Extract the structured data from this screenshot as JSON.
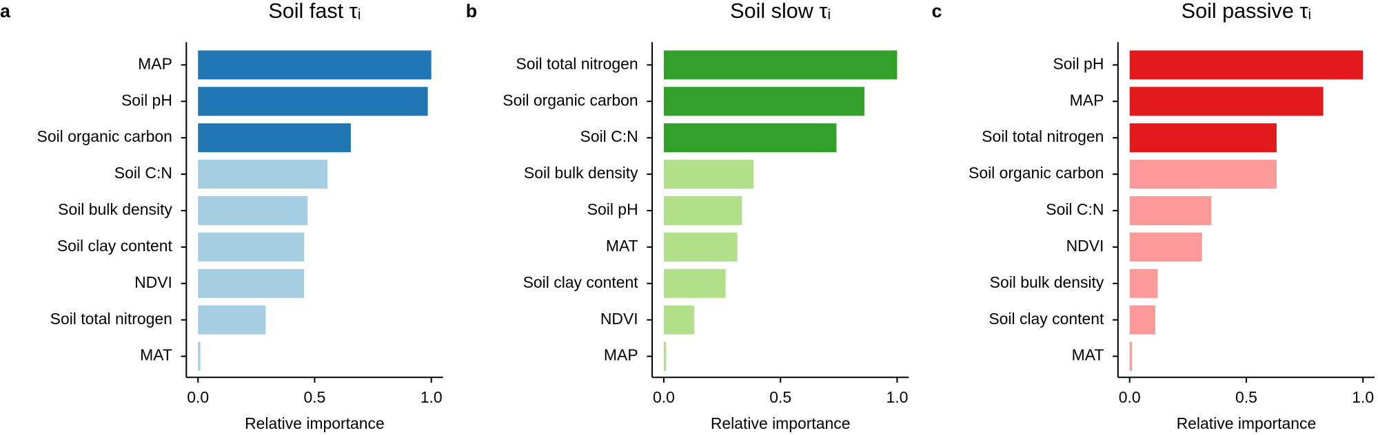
{
  "chart_data": [
    {
      "type": "bar",
      "orientation": "horizontal",
      "panel_label": "a",
      "title": "Soil fast τᵢ",
      "xlabel": "Relative importance",
      "categories": [
        "MAP",
        "Soil pH",
        "Soil organic carbon",
        "Soil C:N",
        "Soil bulk density",
        "Soil clay content",
        "NDVI",
        "Soil total nitrogen",
        "MAT"
      ],
      "values": [
        1.0,
        0.985,
        0.655,
        0.555,
        0.47,
        0.455,
        0.455,
        0.29,
        0.01
      ],
      "colors": [
        "#2077b4",
        "#2077b4",
        "#2077b4",
        "#a6cee3",
        "#a6cee3",
        "#a6cee3",
        "#a6cee3",
        "#a6cee3",
        "#a6cee3"
      ],
      "xlim": [
        -0.05,
        1.05
      ],
      "xticks": [
        {
          "value": 0,
          "label": "0.0"
        },
        0.5,
        {
          "value": 1,
          "label": "1.0"
        }
      ]
    },
    {
      "type": "bar",
      "orientation": "horizontal",
      "panel_label": "b",
      "title": "Soil slow τᵢ",
      "xlabel": "Relative importance",
      "categories": [
        "Soil total nitrogen",
        "Soil organic carbon",
        "Soil C:N",
        "Soil bulk density",
        "Soil pH",
        "MAT",
        "Soil clay content",
        "NDVI",
        "MAP"
      ],
      "values": [
        1.0,
        0.86,
        0.74,
        0.385,
        0.335,
        0.315,
        0.265,
        0.13,
        0.01
      ],
      "colors": [
        "#33a02c",
        "#33a02c",
        "#33a02c",
        "#b2df8a",
        "#b2df8a",
        "#b2df8a",
        "#b2df8a",
        "#b2df8a",
        "#b2df8a"
      ],
      "xlim": [
        -0.05,
        1.05
      ],
      "xticks": [
        {
          "value": 0,
          "label": "0.0"
        },
        0.5,
        {
          "value": 1,
          "label": "1.0"
        }
      ]
    },
    {
      "type": "bar",
      "orientation": "horizontal",
      "panel_label": "c",
      "title": "Soil passive τᵢ",
      "xlabel": "Relative importance",
      "categories": [
        "Soil pH",
        "MAP",
        "Soil total nitrogen",
        "Soil organic carbon",
        "Soil C:N",
        "NDVI",
        "Soil bulk density",
        "Soil clay content",
        "MAT"
      ],
      "values": [
        1.0,
        0.83,
        0.63,
        0.63,
        0.35,
        0.31,
        0.12,
        0.11,
        0.01
      ],
      "colors": [
        "#e31a1c",
        "#e31a1c",
        "#e31a1c",
        "#fb9a99",
        "#fb9a99",
        "#fb9a99",
        "#fb9a99",
        "#fb9a99",
        "#fb9a99"
      ],
      "xlim": [
        -0.05,
        1.05
      ],
      "xticks": [
        {
          "value": 0,
          "label": "0.0"
        },
        0.5,
        {
          "value": 1,
          "label": "1.0"
        }
      ]
    }
  ]
}
